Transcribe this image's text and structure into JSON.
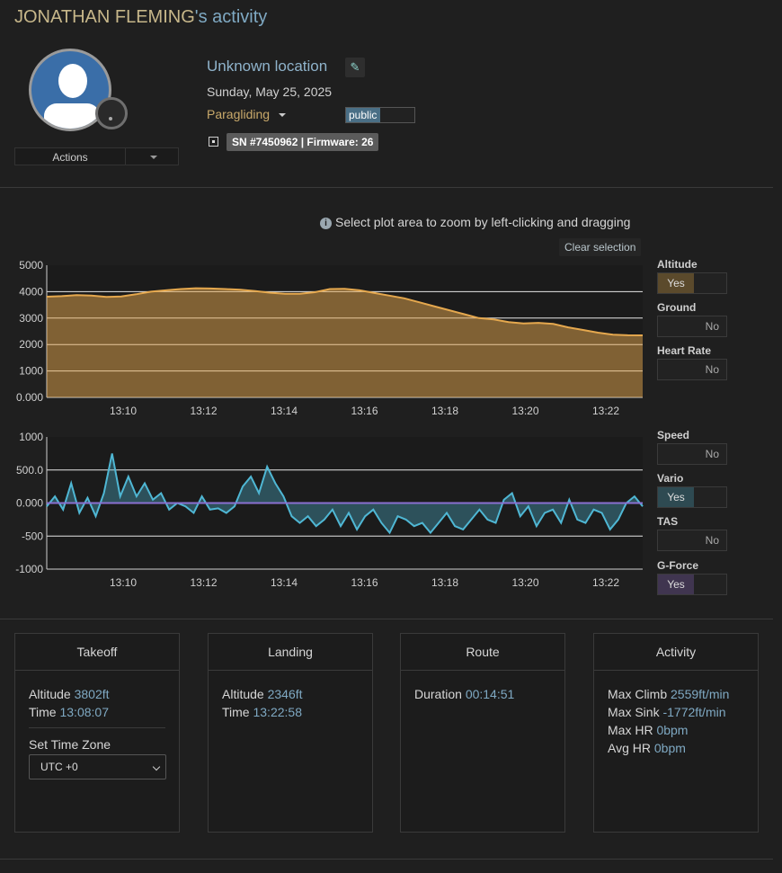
{
  "header": {
    "name": "JONATHAN FLEMING",
    "suffix": "'s activity"
  },
  "profile": {
    "actions_label": "Actions"
  },
  "activity": {
    "location": "Unknown location",
    "date": "Sunday, May 25, 2025",
    "sport": "Paragliding",
    "visibility": "public",
    "device": "SN #7450962 | Firmware: 26"
  },
  "plot": {
    "hint": "Select plot area to zoom by left-clicking and dragging",
    "clear_label": "Clear selection"
  },
  "chart_data": [
    {
      "type": "area",
      "title": "",
      "ylim": [
        0,
        5000
      ],
      "yticks": [
        "5000",
        "4000",
        "3000",
        "2000",
        "1000",
        "0.000"
      ],
      "xticks": [
        "13:10",
        "13:12",
        "13:14",
        "13:16",
        "13:18",
        "13:20",
        "13:22"
      ],
      "x_start": "13:08:07",
      "x_end": "13:22:58",
      "series": [
        {
          "name": "Altitude",
          "color": "#e5a84e",
          "values": [
            3810,
            3830,
            3870,
            3850,
            3800,
            3820,
            3900,
            4000,
            4050,
            4100,
            4130,
            4120,
            4100,
            4070,
            4020,
            3960,
            3920,
            3920,
            3980,
            4100,
            4110,
            4050,
            3950,
            3850,
            3750,
            3600,
            3450,
            3300,
            3150,
            3000,
            2950,
            2850,
            2800,
            2820,
            2780,
            2650,
            2550,
            2450,
            2370,
            2350,
            2346
          ]
        }
      ]
    },
    {
      "type": "area",
      "title": "",
      "ylim": [
        -1000,
        1000
      ],
      "yticks": [
        "1000",
        "500.0",
        "0.000",
        "-500",
        "-1000"
      ],
      "xticks": [
        "13:10",
        "13:12",
        "13:14",
        "13:16",
        "13:18",
        "13:20",
        "13:22"
      ],
      "series": [
        {
          "name": "Vario",
          "color": "#4fb7d4",
          "values": [
            -50,
            100,
            -100,
            300,
            -150,
            80,
            -200,
            150,
            750,
            100,
            400,
            100,
            300,
            50,
            150,
            -100,
            0,
            -50,
            -150,
            100,
            -100,
            -80,
            -150,
            -50,
            250,
            400,
            150,
            550,
            300,
            100,
            -200,
            -300,
            -200,
            -350,
            -250,
            -100,
            -350,
            -150,
            -400,
            -200,
            -100,
            -300,
            -450,
            -200,
            -250,
            -350,
            -300,
            -450,
            -300,
            -150,
            -350,
            -400,
            -250,
            -100,
            -250,
            -300,
            50,
            150,
            -200,
            -50,
            -350,
            -150,
            -100,
            -300,
            50,
            -250,
            -300,
            -100,
            -150,
            -400,
            -250,
            0,
            100,
            -50
          ]
        },
        {
          "name": "G-Force",
          "color": "#8a6fd0",
          "values": [
            0,
            0,
            0,
            0,
            0,
            0,
            0,
            0,
            0,
            0
          ]
        }
      ]
    }
  ],
  "toggles": [
    {
      "label": "Altitude",
      "state": "Yes",
      "color": "#5b4a2c"
    },
    {
      "label": "Ground",
      "state": "No",
      "color": ""
    },
    {
      "label": "Heart Rate",
      "state": "No",
      "color": ""
    },
    {
      "label": "Speed",
      "state": "No",
      "color": ""
    },
    {
      "label": "Vario",
      "state": "Yes",
      "color": "#2e4a52"
    },
    {
      "label": "TAS",
      "state": "No",
      "color": ""
    },
    {
      "label": "G-Force",
      "state": "Yes",
      "color": "#403550"
    }
  ],
  "panels": {
    "takeoff": {
      "title": "Takeoff",
      "altitude_label": "Altitude",
      "altitude": "3802ft",
      "time_label": "Time",
      "time": "13:08:07",
      "tz_label": "Set Time Zone",
      "tz_value": "UTC +0"
    },
    "landing": {
      "title": "Landing",
      "altitude_label": "Altitude",
      "altitude": "2346ft",
      "time_label": "Time",
      "time": "13:22:58"
    },
    "route": {
      "title": "Route",
      "duration_label": "Duration",
      "duration": "00:14:51"
    },
    "activity": {
      "title": "Activity",
      "max_climb_label": "Max Climb",
      "max_climb": "2559ft/min",
      "max_sink_label": "Max Sink",
      "max_sink": "-1772ft/min",
      "max_hr_label": "Max HR",
      "max_hr": "0bpm",
      "avg_hr_label": "Avg HR",
      "avg_hr": "0bpm"
    }
  }
}
